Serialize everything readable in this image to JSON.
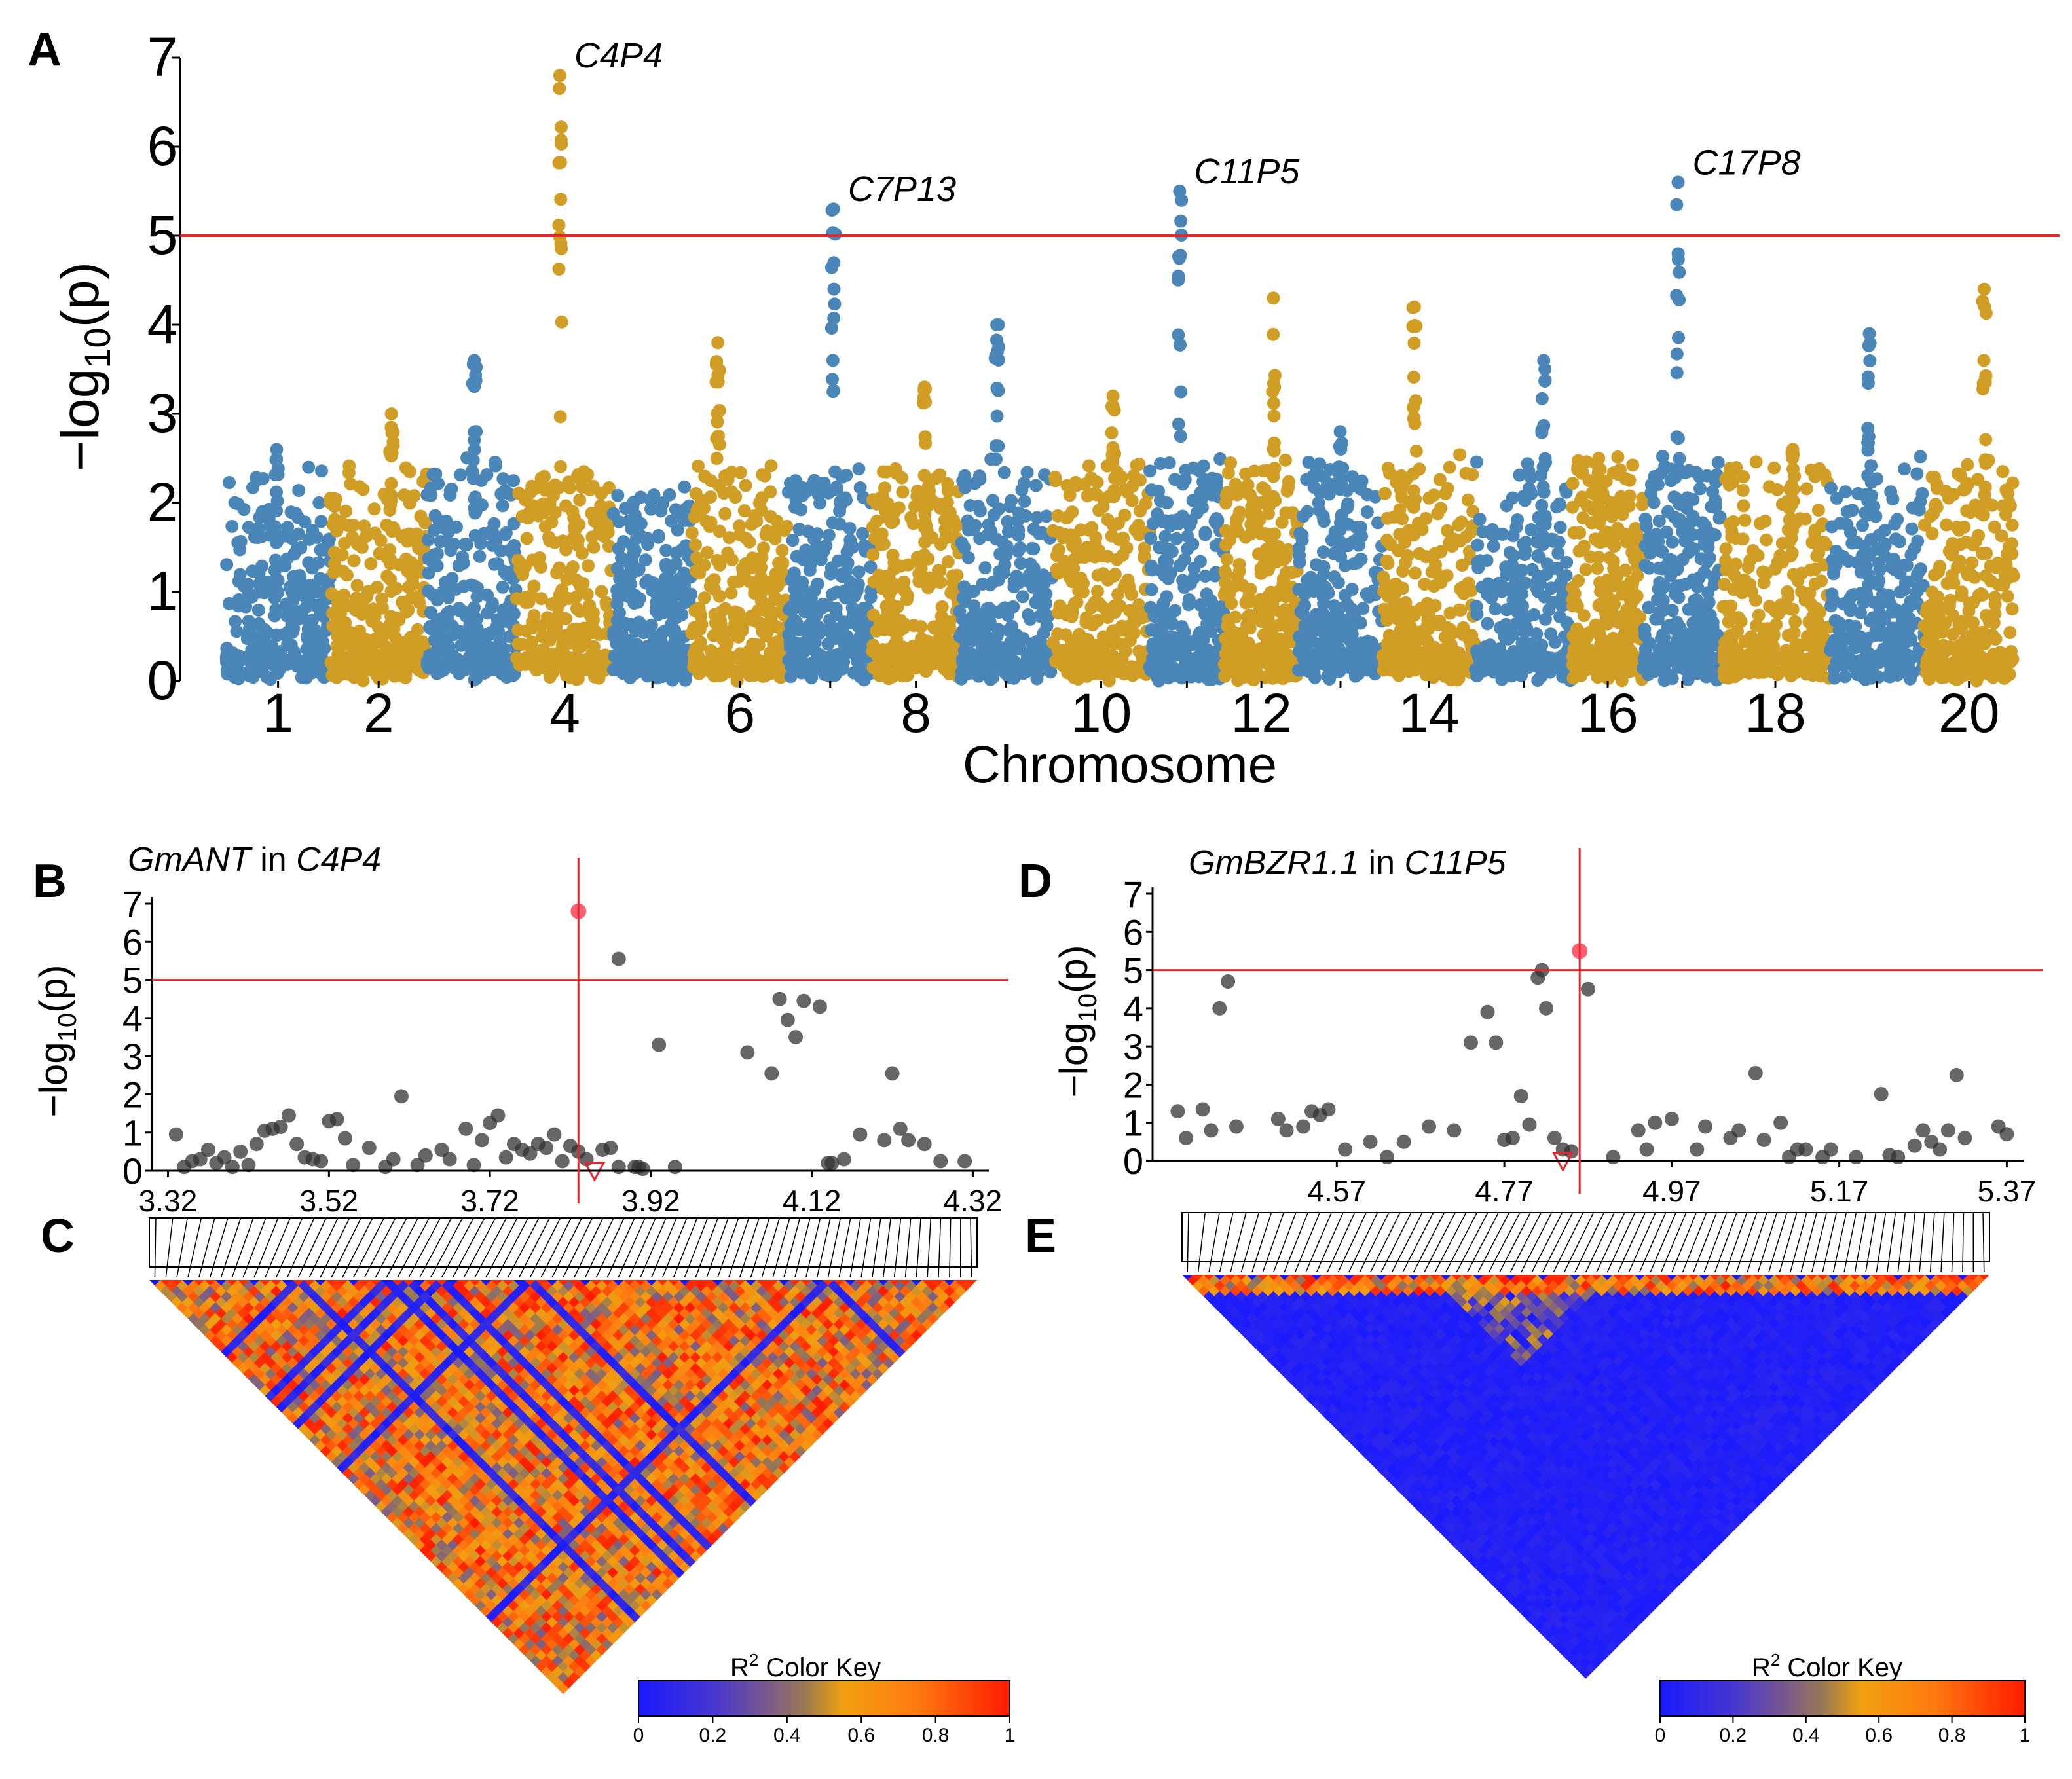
{
  "panels": {
    "A": {
      "letter": "A"
    },
    "B": {
      "letter": "B",
      "title_gene": "GmANT",
      "title_in": " in ",
      "title_locus": "C4P4"
    },
    "C": {
      "letter": "C"
    },
    "D": {
      "letter": "D",
      "title_gene": "GmBZR1.1",
      "title_in": " in ",
      "title_locus": "C11P5"
    },
    "E": {
      "letter": "E"
    }
  },
  "colors": {
    "blue": "#4a87b8",
    "gold": "#d09d25",
    "threshold": "#e8262e",
    "point_grey": "#333333",
    "ld_low": "#1a1aff",
    "ld_high": "#ff2a00"
  },
  "chart_data": [
    {
      "id": "manhattan",
      "type": "scatter",
      "title": "",
      "xlabel": "Chromosome",
      "ylabel_prefix": "−log",
      "ylabel_sub": "10",
      "ylabel_var": "(p)",
      "ylim": [
        0,
        7
      ],
      "yticks": [
        "0",
        "1",
        "2",
        "3",
        "4",
        "5",
        "6",
        "7"
      ],
      "threshold": 5,
      "chromosomes": [
        1,
        2,
        3,
        4,
        5,
        6,
        7,
        8,
        9,
        10,
        11,
        12,
        13,
        14,
        15,
        16,
        17,
        18,
        19,
        20
      ],
      "chromosome_sizes_mb": [
        56,
        52,
        48,
        52,
        42,
        52,
        45,
        47,
        50,
        52,
        40,
        40,
        45,
        50,
        52,
        38,
        42,
        58,
        51,
        48
      ],
      "xtick_labels": [
        "1",
        "2",
        "4",
        "6",
        "8",
        "10",
        "12",
        "14",
        "16",
        "18",
        "20"
      ],
      "xtick_chromosomes": [
        1,
        2,
        4,
        6,
        8,
        10,
        12,
        14,
        16,
        18,
        20
      ],
      "peak_labels": [
        {
          "text": "C4P4",
          "chr": 4,
          "value": 6.8
        },
        {
          "text": "C7P13",
          "chr": 7,
          "value": 5.3
        },
        {
          "text": "C11P5",
          "chr": 11,
          "value": 5.5
        },
        {
          "text": "C17P8",
          "chr": 17,
          "value": 5.6
        }
      ],
      "chromosome_max": [
        2.6,
        3.0,
        3.6,
        6.8,
        2.0,
        3.8,
        5.3,
        3.3,
        4.0,
        3.2,
        5.5,
        4.3,
        2.8,
        4.2,
        3.6,
        2.5,
        5.6,
        2.6,
        3.9,
        4.4
      ]
    },
    {
      "id": "regionB",
      "type": "scatter",
      "ylabel_prefix": "−log",
      "ylabel_sub": "10",
      "ylabel_var": "(p)",
      "xlim": [
        3.3,
        4.34
      ],
      "ylim": [
        0,
        7
      ],
      "xticks": [
        "3.32",
        "3.52",
        "3.72",
        "3.92",
        "4.12",
        "4.32"
      ],
      "yticks": [
        "0",
        "1",
        "2",
        "3",
        "4",
        "5",
        "6",
        "7"
      ],
      "threshold": 5,
      "lead_snp": {
        "x": 3.83,
        "y": 6.8
      },
      "gene_marker_x": 3.85,
      "points": [
        [
          3.33,
          0.95
        ],
        [
          3.34,
          0.1
        ],
        [
          3.35,
          0.25
        ],
        [
          3.36,
          0.3
        ],
        [
          3.37,
          0.55
        ],
        [
          3.38,
          0.2
        ],
        [
          3.39,
          0.35
        ],
        [
          3.4,
          0.1
        ],
        [
          3.41,
          0.5
        ],
        [
          3.42,
          0.15
        ],
        [
          3.43,
          0.7
        ],
        [
          3.44,
          1.05
        ],
        [
          3.45,
          1.1
        ],
        [
          3.46,
          1.15
        ],
        [
          3.47,
          1.45
        ],
        [
          3.48,
          0.7
        ],
        [
          3.49,
          0.35
        ],
        [
          3.5,
          0.3
        ],
        [
          3.51,
          0.25
        ],
        [
          3.52,
          1.3
        ],
        [
          3.53,
          1.35
        ],
        [
          3.54,
          0.85
        ],
        [
          3.55,
          0.15
        ],
        [
          3.57,
          0.6
        ],
        [
          3.59,
          0.1
        ],
        [
          3.6,
          0.3
        ],
        [
          3.61,
          1.95
        ],
        [
          3.63,
          0.15
        ],
        [
          3.64,
          0.4
        ],
        [
          3.66,
          0.55
        ],
        [
          3.67,
          0.3
        ],
        [
          3.69,
          1.1
        ],
        [
          3.7,
          0.15
        ],
        [
          3.71,
          0.8
        ],
        [
          3.72,
          1.25
        ],
        [
          3.73,
          1.45
        ],
        [
          3.74,
          0.35
        ],
        [
          3.75,
          0.7
        ],
        [
          3.76,
          0.55
        ],
        [
          3.77,
          0.45
        ],
        [
          3.78,
          0.7
        ],
        [
          3.79,
          0.6
        ],
        [
          3.8,
          0.95
        ],
        [
          3.81,
          0.25
        ],
        [
          3.82,
          0.65
        ],
        [
          3.83,
          0.5
        ],
        [
          3.84,
          0.3
        ],
        [
          3.86,
          0.55
        ],
        [
          3.87,
          0.6
        ],
        [
          3.88,
          5.55
        ],
        [
          3.9,
          0.1
        ],
        [
          3.905,
          0.1
        ],
        [
          3.91,
          0.05
        ],
        [
          3.88,
          0.1
        ],
        [
          3.93,
          3.3
        ],
        [
          3.95,
          0.1
        ],
        [
          4.04,
          3.1
        ],
        [
          4.07,
          2.55
        ],
        [
          4.08,
          4.5
        ],
        [
          4.09,
          3.95
        ],
        [
          4.1,
          3.5
        ],
        [
          4.11,
          4.45
        ],
        [
          4.13,
          4.3
        ],
        [
          4.14,
          0.2
        ],
        [
          4.145,
          0.2
        ],
        [
          4.16,
          0.3
        ],
        [
          4.18,
          0.95
        ],
        [
          4.21,
          0.8
        ],
        [
          4.22,
          2.55
        ],
        [
          4.23,
          1.1
        ],
        [
          4.24,
          0.8
        ],
        [
          4.26,
          0.7
        ],
        [
          4.28,
          0.25
        ],
        [
          4.31,
          0.25
        ]
      ]
    },
    {
      "id": "regionD",
      "type": "scatter",
      "ylabel_prefix": "−log",
      "ylabel_sub": "10",
      "ylabel_var": "(p)",
      "xlim": [
        4.35,
        5.39
      ],
      "ylim": [
        0,
        7
      ],
      "xticks": [
        "4.57",
        "4.77",
        "4.97",
        "5.17",
        "5.37"
      ],
      "yticks": [
        "0",
        "1",
        "2",
        "3",
        "4",
        "5",
        "6",
        "7"
      ],
      "threshold": 5,
      "lead_snp": {
        "x": 4.86,
        "y": 5.5
      },
      "gene_marker_x": 4.84,
      "points": [
        [
          4.38,
          1.3
        ],
        [
          4.39,
          0.6
        ],
        [
          4.41,
          1.35
        ],
        [
          4.42,
          0.8
        ],
        [
          4.43,
          4.0
        ],
        [
          4.44,
          4.7
        ],
        [
          4.45,
          0.9
        ],
        [
          4.5,
          1.1
        ],
        [
          4.51,
          0.8
        ],
        [
          4.53,
          0.9
        ],
        [
          4.54,
          1.3
        ],
        [
          4.55,
          1.2
        ],
        [
          4.56,
          1.35
        ],
        [
          4.58,
          0.3
        ],
        [
          4.61,
          0.5
        ],
        [
          4.63,
          0.1
        ],
        [
          4.65,
          0.5
        ],
        [
          4.68,
          0.9
        ],
        [
          4.71,
          0.8
        ],
        [
          4.73,
          3.1
        ],
        [
          4.75,
          3.9
        ],
        [
          4.76,
          3.1
        ],
        [
          4.77,
          0.55
        ],
        [
          4.78,
          0.6
        ],
        [
          4.79,
          1.7
        ],
        [
          4.8,
          0.95
        ],
        [
          4.81,
          4.8
        ],
        [
          4.815,
          5.0
        ],
        [
          4.82,
          4.0
        ],
        [
          4.83,
          0.6
        ],
        [
          4.84,
          0.3
        ],
        [
          4.85,
          0.25
        ],
        [
          4.87,
          4.5
        ],
        [
          4.9,
          0.1
        ],
        [
          4.93,
          0.8
        ],
        [
          4.94,
          0.3
        ],
        [
          4.95,
          1.0
        ],
        [
          4.97,
          1.1
        ],
        [
          5.0,
          0.3
        ],
        [
          5.01,
          0.9
        ],
        [
          5.04,
          0.6
        ],
        [
          5.05,
          0.8
        ],
        [
          5.07,
          2.3
        ],
        [
          5.08,
          0.55
        ],
        [
          5.1,
          1.0
        ],
        [
          5.11,
          0.1
        ],
        [
          5.12,
          0.3
        ],
        [
          5.13,
          0.3
        ],
        [
          5.15,
          0.1
        ],
        [
          5.16,
          0.3
        ],
        [
          5.19,
          0.1
        ],
        [
          5.22,
          1.75
        ],
        [
          5.23,
          0.15
        ],
        [
          5.24,
          0.1
        ],
        [
          5.26,
          0.4
        ],
        [
          5.27,
          0.8
        ],
        [
          5.28,
          0.5
        ],
        [
          5.29,
          0.3
        ],
        [
          5.3,
          0.8
        ],
        [
          5.31,
          2.25
        ],
        [
          5.32,
          0.6
        ],
        [
          5.36,
          0.9
        ],
        [
          5.37,
          0.7
        ]
      ]
    },
    {
      "id": "ldC",
      "type": "heatmap",
      "color_key_label": "R",
      "color_key_sup": "2",
      "color_key_suffix": " Color Key",
      "color_key_ticks": [
        "0",
        "0.2",
        "0.4",
        "0.6",
        "0.8",
        "1"
      ],
      "n_snps": 75,
      "mean_r2": 0.72
    },
    {
      "id": "ldE",
      "type": "heatmap",
      "color_key_label": "R",
      "color_key_sup": "2",
      "color_key_suffix": " Color Key",
      "color_key_ticks": [
        "0",
        "0.2",
        "0.4",
        "0.6",
        "0.8",
        "1"
      ],
      "n_snps": 75,
      "mean_r2": 0.1
    }
  ]
}
